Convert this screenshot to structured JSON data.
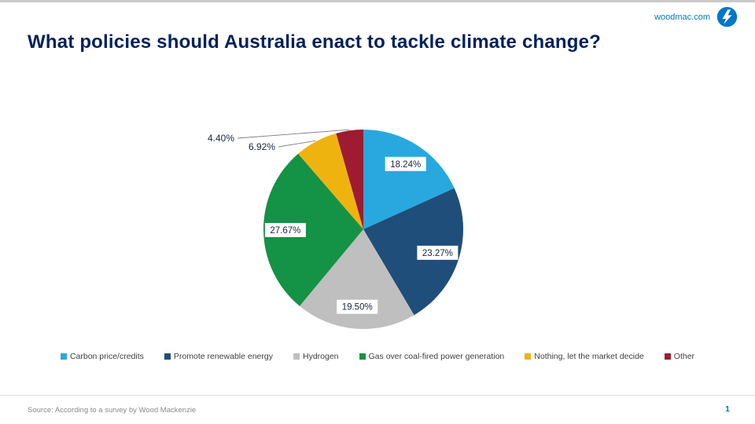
{
  "header": {
    "site": "woodmac.com",
    "logo_icon": "woodmac-logo"
  },
  "title": "What policies should Australia enact to tackle climate change?",
  "chart_data": {
    "type": "pie",
    "title": "What policies should Australia enact to tackle climate change?",
    "categories": [
      "Carbon price/credits",
      "Promote renewable energy",
      "Hydrogen",
      "Gas over coal-fired power generation",
      "Nothing, let the market decide",
      "Other"
    ],
    "values": [
      18.24,
      23.27,
      19.5,
      27.67,
      6.92,
      4.4
    ],
    "labels": [
      "18.24%",
      "23.27%",
      "19.50%",
      "27.67%",
      "6.92%",
      "4.40%"
    ],
    "colors": [
      "#29A8E0",
      "#1F4E7A",
      "#BFBFBF",
      "#149245",
      "#EFB310",
      "#9E1B32"
    ],
    "start_angle_deg": -90,
    "direction": "clockwise",
    "legend_position": "bottom",
    "label_placement": [
      "inside",
      "inside",
      "inside",
      "inside",
      "outside",
      "outside"
    ],
    "label_text_color": "#1A2440",
    "leader_line_color": "#808080"
  },
  "footer": {
    "source": "Source: According to a survey by Wood Mackenzie",
    "page": "1"
  }
}
